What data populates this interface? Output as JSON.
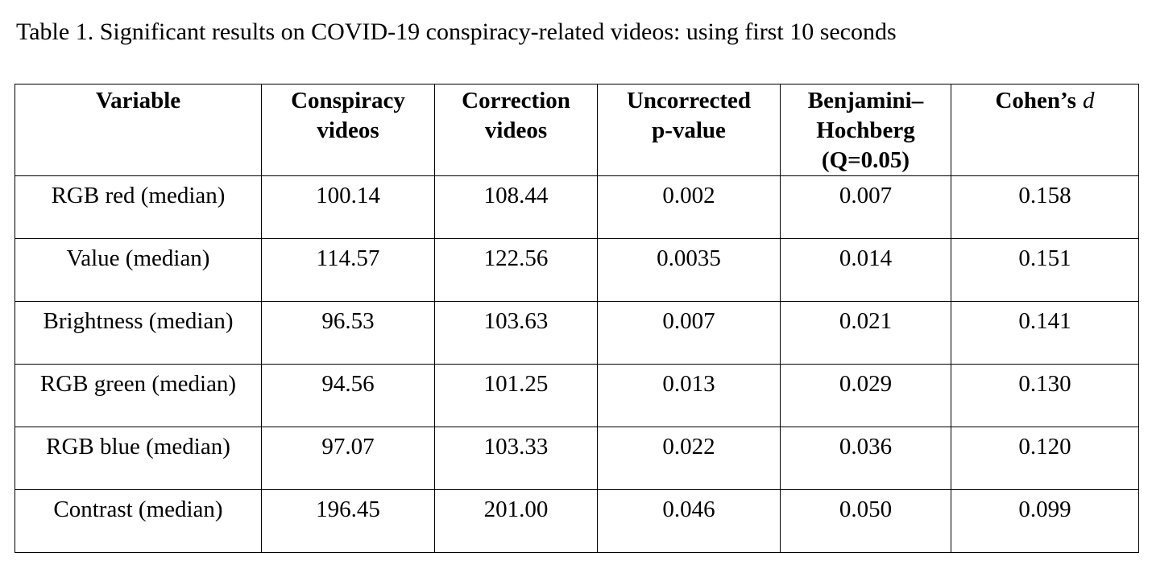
{
  "title": "Table 1. Significant results on COVID-19 conspiracy-related videos: using first 10 seconds",
  "table": {
    "header": [
      [
        "Variable"
      ],
      [
        "Conspiracy",
        "videos"
      ],
      [
        "Correction",
        "videos"
      ],
      [
        "Uncorrected",
        "p-value"
      ],
      [
        "Benjamini–",
        "Hochberg",
        "(Q=0.05)"
      ],
      [
        {
          "text": "Cohen’s",
          "italic": "d"
        }
      ]
    ],
    "rows": [
      [
        "RGB red (median)",
        "100.14",
        "108.44",
        "0.002",
        "0.007",
        "0.158"
      ],
      [
        "Value (median)",
        "114.57",
        "122.56",
        "0.0035",
        "0.014",
        "0.151"
      ],
      [
        "Brightness (median)",
        "96.53",
        "103.63",
        "0.007",
        "0.021",
        "0.141"
      ],
      [
        "RGB green (median)",
        "94.56",
        "101.25",
        "0.013",
        "0.029",
        "0.130"
      ],
      [
        "RGB blue (median)",
        "97.07",
        "103.33",
        "0.022",
        "0.036",
        "0.120"
      ],
      [
        "Contrast (median)",
        "196.45",
        "201.00",
        "0.046",
        "0.050",
        "0.099"
      ]
    ]
  }
}
